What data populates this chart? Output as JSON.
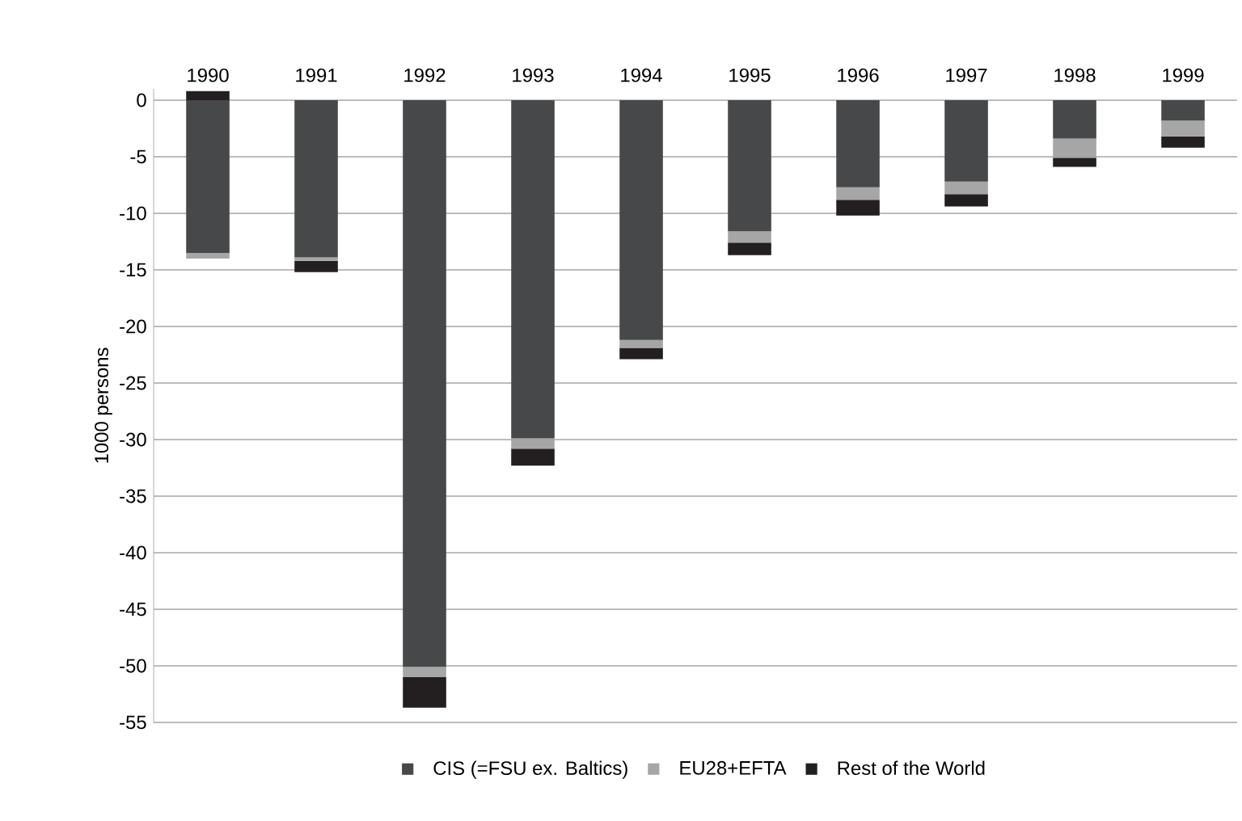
{
  "chart_data": {
    "type": "bar",
    "stacked": true,
    "ylabel": "1000 persons",
    "categories": [
      "1990",
      "1991",
      "1992",
      "1993",
      "1994",
      "1995",
      "1996",
      "1997",
      "1998",
      "1999"
    ],
    "series": [
      {
        "name": "CIS (=FSU ex. Baltics)",
        "color": "#474849",
        "values": [
          -13.5,
          -13.9,
          -50.1,
          -29.9,
          -21.2,
          -11.6,
          -7.7,
          -7.2,
          -3.4,
          -1.8
        ]
      },
      {
        "name": "EU28+EFTA",
        "color": "#a6a6a6",
        "values": [
          -0.5,
          -0.3,
          -0.9,
          -0.9,
          -0.7,
          -1.0,
          -1.1,
          -1.1,
          -1.7,
          -1.4
        ]
      },
      {
        "name": "Rest of the World",
        "color": "#231f20",
        "values": [
          0.8,
          -1.0,
          -2.7,
          -1.5,
          -1.0,
          -1.1,
          -1.4,
          -1.1,
          -0.8,
          -1.0
        ]
      }
    ],
    "ylim": [
      -55,
      1
    ],
    "yticks": [
      0,
      -5,
      -10,
      -15,
      -20,
      -25,
      -30,
      -35,
      -40,
      -45,
      -50,
      -55
    ],
    "grid": "y",
    "legend": "bottom"
  }
}
